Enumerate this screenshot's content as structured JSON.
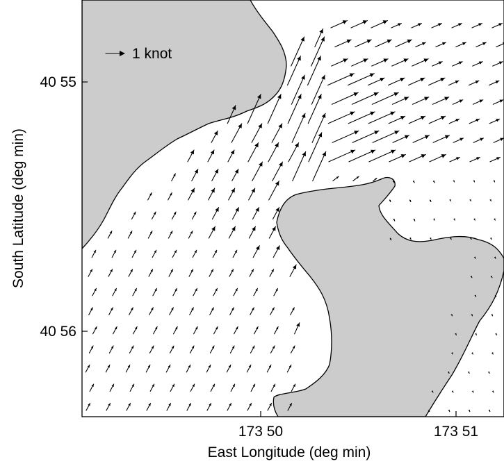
{
  "map": {
    "x_axis": {
      "label": "East Longitude  (deg min)",
      "ticks": [
        {
          "label": "173 50",
          "lon_min": 50
        },
        {
          "label": "173 51",
          "lon_min": 51
        }
      ]
    },
    "y_axis": {
      "label": "South Latitude  (deg min)",
      "ticks": [
        {
          "label": "40 55",
          "lat_min": 55
        },
        {
          "label": "40 56",
          "lat_min": 56
        }
      ]
    },
    "scale": {
      "label": "1 knot",
      "speed_knots": 1
    },
    "colors": {
      "land": "#cccccc",
      "water": "#ffffff",
      "vectors": "#000000"
    },
    "description_type": "tidal current vector field"
  }
}
